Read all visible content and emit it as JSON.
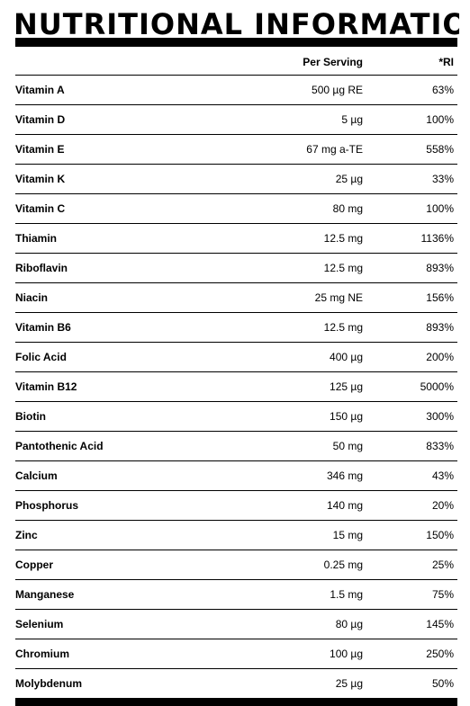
{
  "title": "NUTRITIONAL INFORMATION",
  "table": {
    "columns": {
      "name": "",
      "serving": "Per Serving",
      "ri": "*RI"
    },
    "rows": [
      {
        "name": "Vitamin A",
        "serving": "500 µg RE",
        "ri": "63%"
      },
      {
        "name": "Vitamin D",
        "serving": "5 µg",
        "ri": "100%"
      },
      {
        "name": "Vitamin E",
        "serving": "67 mg a-TE",
        "ri": "558%"
      },
      {
        "name": "Vitamin K",
        "serving": "25 µg",
        "ri": "33%"
      },
      {
        "name": "Vitamin C",
        "serving": "80 mg",
        "ri": "100%"
      },
      {
        "name": "Thiamin",
        "serving": "12.5 mg",
        "ri": "1136%"
      },
      {
        "name": "Riboflavin",
        "serving": "12.5 mg",
        "ri": "893%"
      },
      {
        "name": "Niacin",
        "serving": "25 mg NE",
        "ri": "156%"
      },
      {
        "name": "Vitamin B6",
        "serving": "12.5 mg",
        "ri": "893%"
      },
      {
        "name": "Folic Acid",
        "serving": "400 µg",
        "ri": "200%"
      },
      {
        "name": "Vitamin B12",
        "serving": "125 µg",
        "ri": "5000%"
      },
      {
        "name": "Biotin",
        "serving": "150 µg",
        "ri": "300%"
      },
      {
        "name": "Pantothenic Acid",
        "serving": "50 mg",
        "ri": "833%"
      },
      {
        "name": "Calcium",
        "serving": "346 mg",
        "ri": "43%"
      },
      {
        "name": "Phosphorus",
        "serving": "140 mg",
        "ri": "20%"
      },
      {
        "name": "Zinc",
        "serving": "15 mg",
        "ri": "150%"
      },
      {
        "name": "Copper",
        "serving": "0.25 mg",
        "ri": "25%"
      },
      {
        "name": "Manganese",
        "serving": "1.5 mg",
        "ri": "75%"
      },
      {
        "name": "Selenium",
        "serving": "80 µg",
        "ri": "145%"
      },
      {
        "name": "Chromium",
        "serving": "100 µg",
        "ri": "250%"
      },
      {
        "name": "Molybdenum",
        "serving": "25 µg",
        "ri": "50%"
      }
    ]
  }
}
